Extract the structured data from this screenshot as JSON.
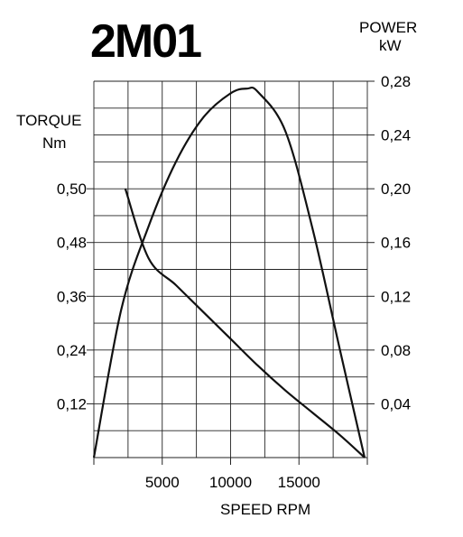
{
  "chart_data": {
    "type": "line",
    "title": "2M01",
    "xlabel": "SPEED RPM",
    "ylabel_left": "TORQUE\nNm",
    "ylabel_right": "POWER\nkW",
    "xlim": [
      0,
      20000
    ],
    "x_ticks": [
      5000,
      10000,
      15000
    ],
    "x_tick_labels": [
      "5000",
      "10000",
      "15000"
    ],
    "y_left_ticks": [
      "0,12",
      "0,24",
      "0,36",
      "0,48",
      "0,50"
    ],
    "y_right_ticks": [
      "0,04",
      "0,08",
      "0,12",
      "0,16",
      "0,20",
      "0,24",
      "0,28"
    ],
    "y_right_lim": [
      0,
      0.28
    ],
    "grid": true,
    "series": [
      {
        "axis": "right",
        "x": [
          0,
          2000,
          4000,
          6000,
          8000,
          10000,
          11200,
          12000,
          14000,
          16000,
          18000,
          19800
        ],
        "y": [
          0,
          0.11,
          0.172,
          0.22,
          0.253,
          0.271,
          0.2745,
          0.272,
          0.243,
          0.17,
          0.08,
          0
        ]
      },
      {
        "axis": "left",
        "x": [
          2300,
          4000,
          6000,
          8000,
          10000,
          12000,
          14000,
          16000,
          18000,
          19800
        ],
        "y": [
          0.5,
          0.445,
          0.385,
          0.325,
          0.265,
          0.205,
          0.15,
          0.1,
          0.05,
          0
        ]
      }
    ]
  }
}
